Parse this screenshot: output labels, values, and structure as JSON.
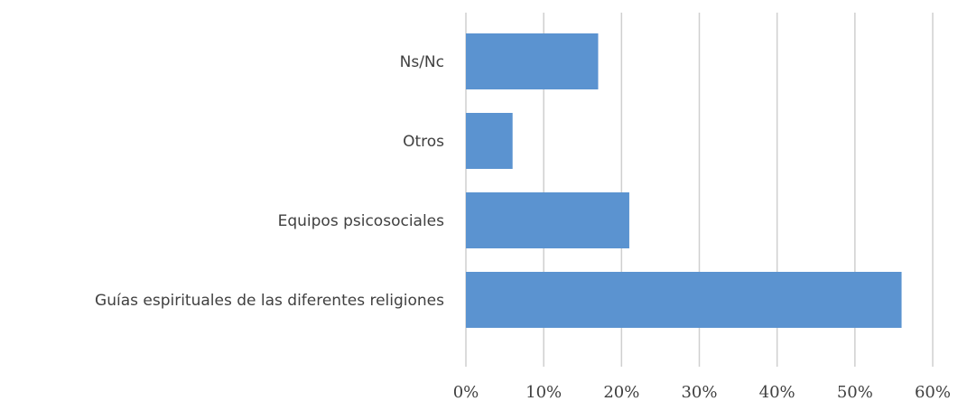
{
  "chart_data": {
    "type": "bar",
    "orientation": "horizontal",
    "categories": [
      "Ns/Nc",
      "Otros",
      "Equipos psicosociales",
      "Guías espirituales de las diferentes religiones"
    ],
    "values": [
      17,
      6,
      21,
      56
    ],
    "xlim": [
      0,
      60
    ],
    "x_ticks": [
      "0%",
      "10%",
      "20%",
      "30%",
      "40%",
      "50%",
      "60%"
    ],
    "grid": "vertical",
    "bar_color": "#5b93d0",
    "title": "",
    "xlabel": "",
    "ylabel": ""
  }
}
